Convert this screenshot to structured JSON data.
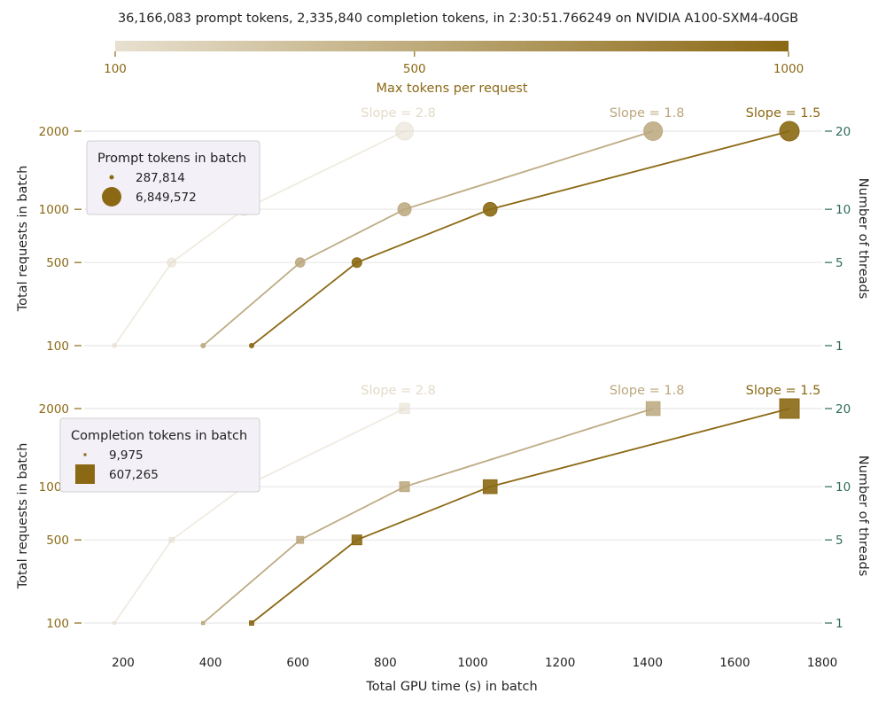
{
  "title": "36,166,083 prompt tokens, 2,335,840 completion tokens, in 2:30:51.766249 on NVIDIA A100-SXM4-40GB",
  "colorbar": {
    "label": "Max tokens per request",
    "ticks": [
      "100",
      "500",
      "1000"
    ],
    "min": 100,
    "max": 1000,
    "color_low": "#e8e0cf",
    "color_high": "#8b6914"
  },
  "colors": {
    "max_100": "#e3dbc8",
    "max_500": "#bba77d",
    "max_1000": "#8b6914",
    "thread_axis": "#2e6b5c",
    "request_axis": "#8b6914",
    "legend_bg": "#f4f0f7",
    "grid": "#e8e8e8"
  },
  "chart_data": [
    {
      "type": "scatter",
      "panel": "top",
      "marker": "circle",
      "ylabel": "Total requests in batch",
      "ylabel_right": "Number of threads",
      "y_ticks": [
        100,
        500,
        1000,
        2000
      ],
      "y_ticks_right": [
        1,
        5,
        10,
        20
      ],
      "grid": true,
      "legend": {
        "title": "Prompt tokens in batch",
        "placement": "top-left",
        "entries": [
          "287,814",
          "6,849,572"
        ],
        "size_min": 287814,
        "size_max": 6849572
      },
      "series": [
        {
          "max_tokens": 100,
          "slope_label": "Slope = 2.8",
          "x": [
            180,
            311,
            477,
            844
          ],
          "y": [
            100,
            500,
            1000,
            2000
          ],
          "size": [
            287814,
            1436000,
            2873000,
            5745000
          ]
        },
        {
          "max_tokens": 500,
          "slope_label": "Slope = 1.8",
          "x": [
            383,
            605,
            844,
            1413
          ],
          "y": [
            100,
            500,
            1000,
            2000
          ],
          "size": [
            314000,
            1570000,
            3141000,
            6282000
          ]
        },
        {
          "max_tokens": 1000,
          "slope_label": "Slope = 1.5",
          "x": [
            494,
            735,
            1040,
            1725
          ],
          "y": [
            100,
            500,
            1000,
            2000
          ],
          "size": [
            342000,
            1712000,
            3424000,
            6849572
          ]
        }
      ]
    },
    {
      "type": "scatter",
      "panel": "bottom",
      "marker": "square",
      "xlabel": "Total GPU time (s) in batch",
      "ylabel": "Total requests in batch",
      "ylabel_right": "Number of threads",
      "xlim": [
        100,
        1800
      ],
      "x_ticks": [
        200,
        400,
        600,
        800,
        1000,
        1200,
        1400,
        1600,
        1800
      ],
      "y_ticks": [
        100,
        500,
        1000,
        2000
      ],
      "y_ticks_right": [
        1,
        5,
        10,
        20
      ],
      "grid": true,
      "legend": {
        "title": "Completion tokens in batch",
        "placement": "top-left",
        "entries": [
          "9,975",
          "607,265"
        ],
        "size_min": 9975,
        "size_max": 607265
      },
      "series": [
        {
          "max_tokens": 100,
          "slope_label": "Slope = 2.8",
          "x": [
            180,
            311,
            477,
            844
          ],
          "y": [
            100,
            500,
            1000,
            2000
          ],
          "size": [
            9975,
            40000,
            80000,
            160000
          ]
        },
        {
          "max_tokens": 500,
          "slope_label": "Slope = 1.8",
          "x": [
            383,
            605,
            844,
            1413
          ],
          "y": [
            100,
            500,
            1000,
            2000
          ],
          "size": [
            15000,
            77000,
            153000,
            306000
          ]
        },
        {
          "max_tokens": 1000,
          "slope_label": "Slope = 1.5",
          "x": [
            494,
            735,
            1040,
            1725
          ],
          "y": [
            100,
            500,
            1000,
            2000
          ],
          "size": [
            30000,
            152000,
            304000,
            607265
          ]
        }
      ]
    }
  ]
}
